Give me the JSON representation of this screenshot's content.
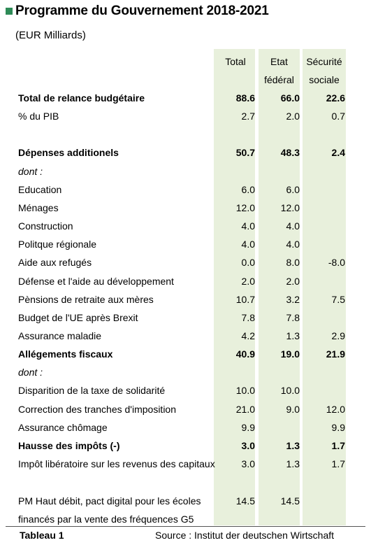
{
  "colors": {
    "accent": "#2e8b57",
    "column_bg": "#e8f0dc"
  },
  "title": "Programme du Gouvernement 2018-2021",
  "subtitle": "(EUR Milliards)",
  "headers": {
    "total": "Total",
    "etat_l1": "Etat",
    "etat_l2": "fédéral",
    "secu_l1": "Sécurité",
    "secu_l2": "sociale"
  },
  "rows": [
    {
      "label": "Total de relance budgétaire",
      "total": "88.6",
      "etat": "66.0",
      "secu": "22.6"
    },
    {
      "label": "% du PIB",
      "total": "2.7",
      "etat": "2.0",
      "secu": "0.7"
    },
    {
      "label": "Dépenses additionels",
      "total": "50.7",
      "etat": "48.3",
      "secu": "2.4"
    },
    {
      "label": "dont :"
    },
    {
      "label": "Education",
      "total": "6.0",
      "etat": "6.0"
    },
    {
      "label": "Ménages",
      "total": "12.0",
      "etat": "12.0"
    },
    {
      "label": "Construction",
      "total": "4.0",
      "etat": "4.0"
    },
    {
      "label": "Politque régionale",
      "total": "4.0",
      "etat": "4.0"
    },
    {
      "label": "Aide aux refugés",
      "total": "0.0",
      "etat": "8.0",
      "secu": "-8.0"
    },
    {
      "label": "Défense et l'aide au développement",
      "total": "2.0",
      "etat": "2.0"
    },
    {
      "label": "Pènsions de retraite aux mères",
      "total": "10.7",
      "etat": "3.2",
      "secu": "7.5"
    },
    {
      "label": "Budget de l'UE après Brexit",
      "total": "7.8",
      "etat": "7.8"
    },
    {
      "label": "Assurance maladie",
      "total": "4.2",
      "etat": "1.3",
      "secu": "2.9"
    },
    {
      "label": "Allégements fiscaux",
      "total": "40.9",
      "etat": "19.0",
      "secu": "21.9"
    },
    {
      "label": "dont :"
    },
    {
      "label": "Disparition de la taxe de solidarité",
      "total": "10.0",
      "etat": "10.0"
    },
    {
      "label": "Correction des tranches d'imposition",
      "total": "21.0",
      "etat": "9.0",
      "secu": "12.0"
    },
    {
      "label": "Assurance chômage",
      "total": "9.9",
      "secu": "9.9"
    },
    {
      "label": "Hausse des impôts (-)",
      "total": "3.0",
      "etat": "1.3",
      "secu": "1.7"
    },
    {
      "label": "Impôt libératoire sur les revenus des capitaux",
      "total": "3.0",
      "etat": "1.3",
      "secu": "1.7"
    },
    {
      "label": "PM Haut débit, pact digital pour les écoles",
      "total": "14.5",
      "etat": "14.5"
    },
    {
      "label": "financés par la vente des fréquences G5"
    }
  ],
  "footer": {
    "table_label": "Tableau 1",
    "source": "Source : Institut der deutschen Wirtschaft"
  }
}
